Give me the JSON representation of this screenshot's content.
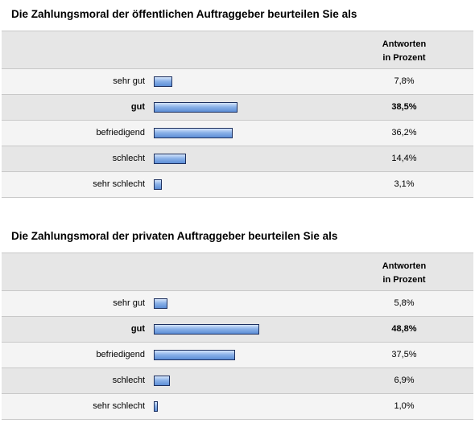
{
  "chart_data": [
    {
      "type": "bar",
      "title": "Die Zahlungsmoral der öffentlichen Auftraggeber beurteilen Sie als",
      "column_header": [
        "Antworten",
        "in Prozent"
      ],
      "categories": [
        "sehr gut",
        "gut",
        "befriedigend",
        "schlecht",
        "sehr schlecht"
      ],
      "values": [
        7.8,
        38.5,
        36.2,
        14.4,
        3.1
      ],
      "value_labels": [
        "7,8%",
        "38,5%",
        "36,2%",
        "14,4%",
        "3,1%"
      ],
      "highlight": "gut",
      "unit": "%",
      "bar_color": "#7aa5e2"
    },
    {
      "type": "bar",
      "title": "Die Zahlungsmoral der privaten Auftraggeber beurteilen Sie als",
      "column_header": [
        "Antworten",
        "in Prozent"
      ],
      "categories": [
        "sehr gut",
        "gut",
        "befriedigend",
        "schlecht",
        "sehr schlecht"
      ],
      "values": [
        5.8,
        48.8,
        37.5,
        6.9,
        1.0
      ],
      "value_labels": [
        "5,8%",
        "48,8%",
        "37,5%",
        "6,9%",
        "1,0%"
      ],
      "highlight": "gut",
      "unit": "%",
      "bar_color": "#7aa5e2"
    }
  ]
}
